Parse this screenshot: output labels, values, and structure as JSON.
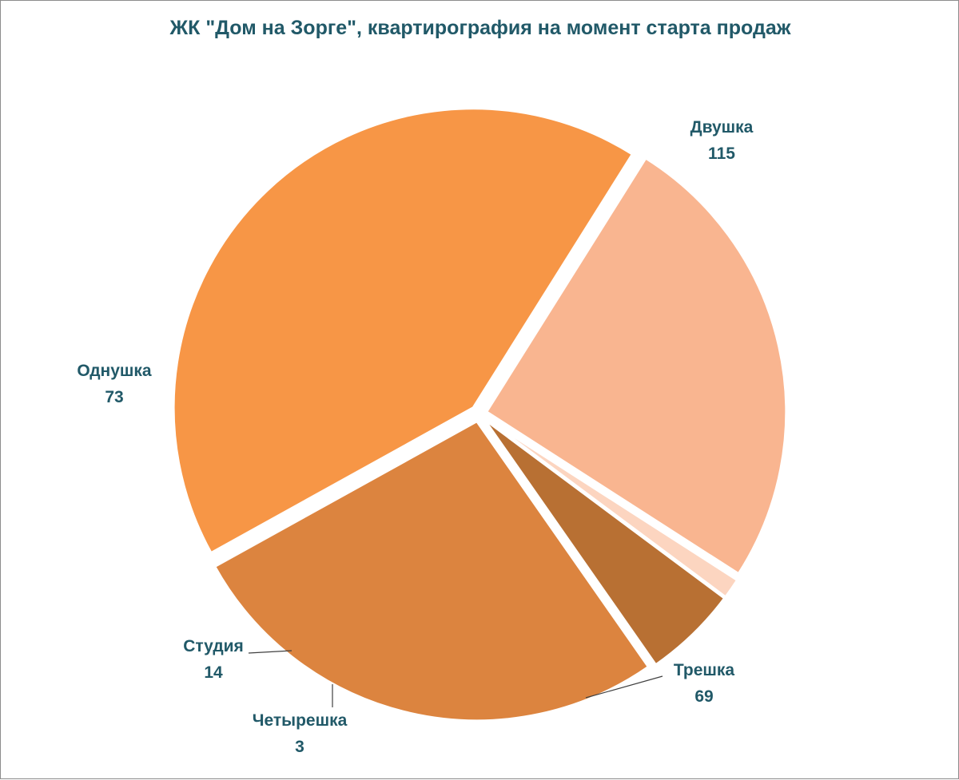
{
  "chart_data": {
    "type": "pie",
    "title": "ЖК \"Дом на Зорге\", квартирография на момент старта продаж",
    "categories": [
      "Двушка",
      "Трешка",
      "Четырешка",
      "Студия",
      "Однушка"
    ],
    "values": [
      115,
      69,
      3,
      14,
      73
    ],
    "colors": [
      "#f79646",
      "#f9b590",
      "#fcd5c0",
      "#b87033",
      "#dc843f"
    ],
    "exploded": true,
    "show_labels": "category-and-value",
    "legend": "none"
  }
}
